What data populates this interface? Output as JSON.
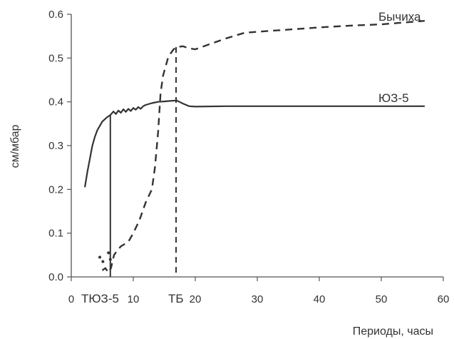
{
  "chart_data": {
    "type": "line",
    "title": "",
    "xlabel": "Периоды, часы",
    "ylabel": "см/мбар",
    "xlim": [
      0,
      60
    ],
    "ylim": [
      0,
      0.6
    ],
    "x_ticks": [
      0,
      10,
      20,
      30,
      40,
      50,
      60
    ],
    "x_tick_labels": [
      "0",
      "10",
      "20",
      "30",
      "40",
      "50",
      "60"
    ],
    "y_ticks": [
      0,
      0.1,
      0.2,
      0.3,
      0.4,
      0.5,
      0.6
    ],
    "y_tick_labels": [
      "0.0",
      "0.1",
      "0.2",
      "0.3",
      "0.4",
      "0.5",
      "0.6"
    ],
    "grid": false,
    "series": [
      {
        "name": "ЮЗ-5",
        "style": "solid",
        "color": "#333333",
        "x": [
          2.2,
          2.6,
          3.0,
          3.4,
          3.8,
          4.2,
          4.6,
          5.0,
          5.4,
          5.8,
          6.3,
          6.8,
          7.2,
          7.6,
          8.0,
          8.4,
          8.8,
          9.2,
          9.6,
          10.0,
          10.4,
          10.8,
          11.2,
          11.6,
          12.0,
          13.0,
          14.0,
          15.0,
          16.0,
          17.0,
          18.0,
          19.0,
          20.0,
          25.0,
          30.0,
          35.0,
          40.0,
          45.0,
          50.0,
          57.0
        ],
        "y": [
          0.205,
          0.24,
          0.27,
          0.3,
          0.32,
          0.335,
          0.345,
          0.355,
          0.36,
          0.365,
          0.37,
          0.378,
          0.372,
          0.38,
          0.375,
          0.383,
          0.377,
          0.384,
          0.379,
          0.386,
          0.382,
          0.388,
          0.384,
          0.39,
          0.393,
          0.397,
          0.4,
          0.401,
          0.402,
          0.403,
          0.396,
          0.39,
          0.389,
          0.39,
          0.39,
          0.39,
          0.39,
          0.39,
          0.39,
          0.39
        ]
      },
      {
        "name": "Бычиха",
        "style": "dashed",
        "color": "#333333",
        "x": [
          5.0,
          5.5,
          6.0,
          6.4,
          6.9,
          7.4,
          8.0,
          8.6,
          9.2,
          10.0,
          11.0,
          12.0,
          13.0,
          13.5,
          14.0,
          14.4,
          14.8,
          15.2,
          15.6,
          16.0,
          16.5,
          17.0,
          18.0,
          19.0,
          20.0,
          22.0,
          25.0,
          28.0,
          32.0,
          36.0,
          40.0,
          45.0,
          50.0,
          57.0
        ],
        "y": [
          0.015,
          0.02,
          0.01,
          0.02,
          0.05,
          0.06,
          0.07,
          0.075,
          0.08,
          0.1,
          0.13,
          0.17,
          0.2,
          0.25,
          0.33,
          0.42,
          0.46,
          0.48,
          0.5,
          0.51,
          0.52,
          0.525,
          0.527,
          0.522,
          0.52,
          0.53,
          0.545,
          0.558,
          0.562,
          0.566,
          0.57,
          0.574,
          0.577,
          0.585
        ]
      }
    ],
    "stray_points": [
      {
        "x": 4.6,
        "y": 0.045
      },
      {
        "x": 5.1,
        "y": 0.035
      },
      {
        "x": 6.0,
        "y": 0.055
      },
      {
        "x": 6.3,
        "y": 0.04
      }
    ],
    "drop_lines": [
      {
        "label": "ЮЗ-5",
        "style": "solid",
        "x": 6.3,
        "y_top": 0.37
      },
      {
        "label": "Бычиха",
        "style": "dashed",
        "x": 16.9,
        "y_top": 0.525
      }
    ],
    "annotations": [
      {
        "text": "ТЮЗ-5",
        "x": 6.3
      },
      {
        "text": "ТБ",
        "x": 16.9
      }
    ]
  }
}
